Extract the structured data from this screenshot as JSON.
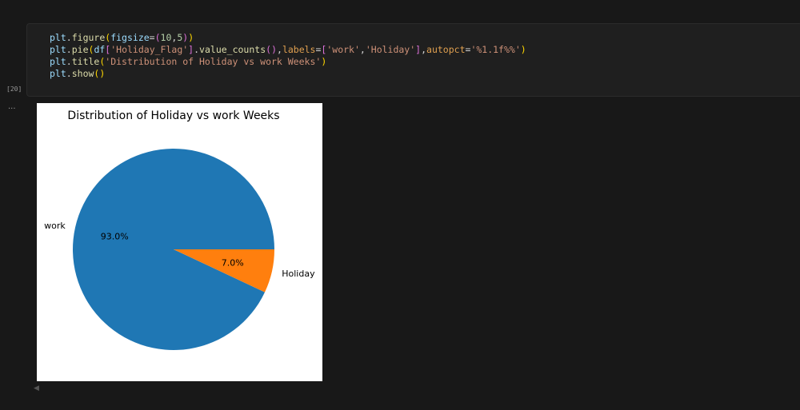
{
  "cell": {
    "execution_count": "[20]",
    "code_lines": [
      "plt.figure(figsize=(10,5))",
      "plt.pie(df['Holiday_Flag'].value_counts(),labels=['work','Holiday'],autopct='%1.1f%%')",
      "plt.title('Distribution of Holiday vs work Weeks')",
      "plt.show()"
    ]
  },
  "output": {
    "prompt": "..."
  },
  "chart_data": {
    "type": "pie",
    "title": "Distribution of Holiday vs work Weeks",
    "categories": [
      "work",
      "Holiday"
    ],
    "values": [
      93.0,
      7.0
    ],
    "data_labels": [
      "93.0%",
      "7.0%"
    ],
    "colors": [
      "#1f77b4",
      "#ff7f0e"
    ],
    "start_angle": 0,
    "direction": "counterclockwise"
  }
}
